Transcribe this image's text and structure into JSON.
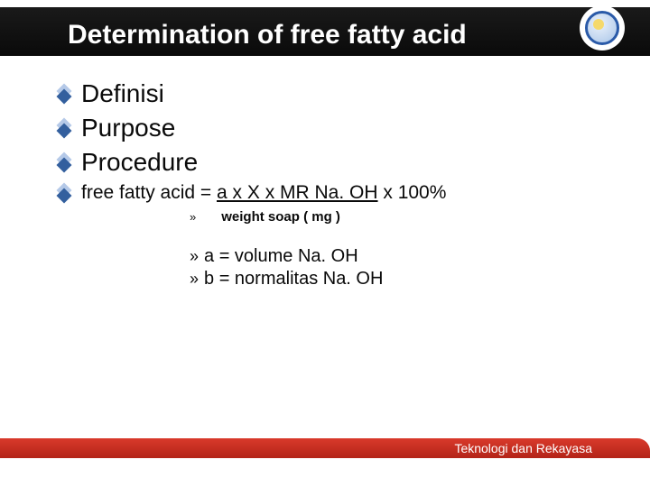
{
  "title": "Determination of free fatty acid",
  "bullets": {
    "b0": "Definisi",
    "b1": "Purpose",
    "b2": "Procedure"
  },
  "formula": {
    "prefix": "free fatty acid = ",
    "numerator": "a x X x MR Na. OH",
    "suffix": " x 100%",
    "denominator": "weight soap ( mg )"
  },
  "legend": {
    "a": "a = volume Na. OH",
    "b": "b = normalitas Na. OH"
  },
  "footer": "Teknologi dan Rekayasa",
  "arrow_glyph": "»",
  "colors": {
    "header_bg": "#0a0a0a",
    "accent": "#b32418",
    "diamond_light": "#b5c9e8",
    "diamond_dark": "#335f9e",
    "text": "#0a0a0a",
    "title_text": "#ffffff"
  }
}
